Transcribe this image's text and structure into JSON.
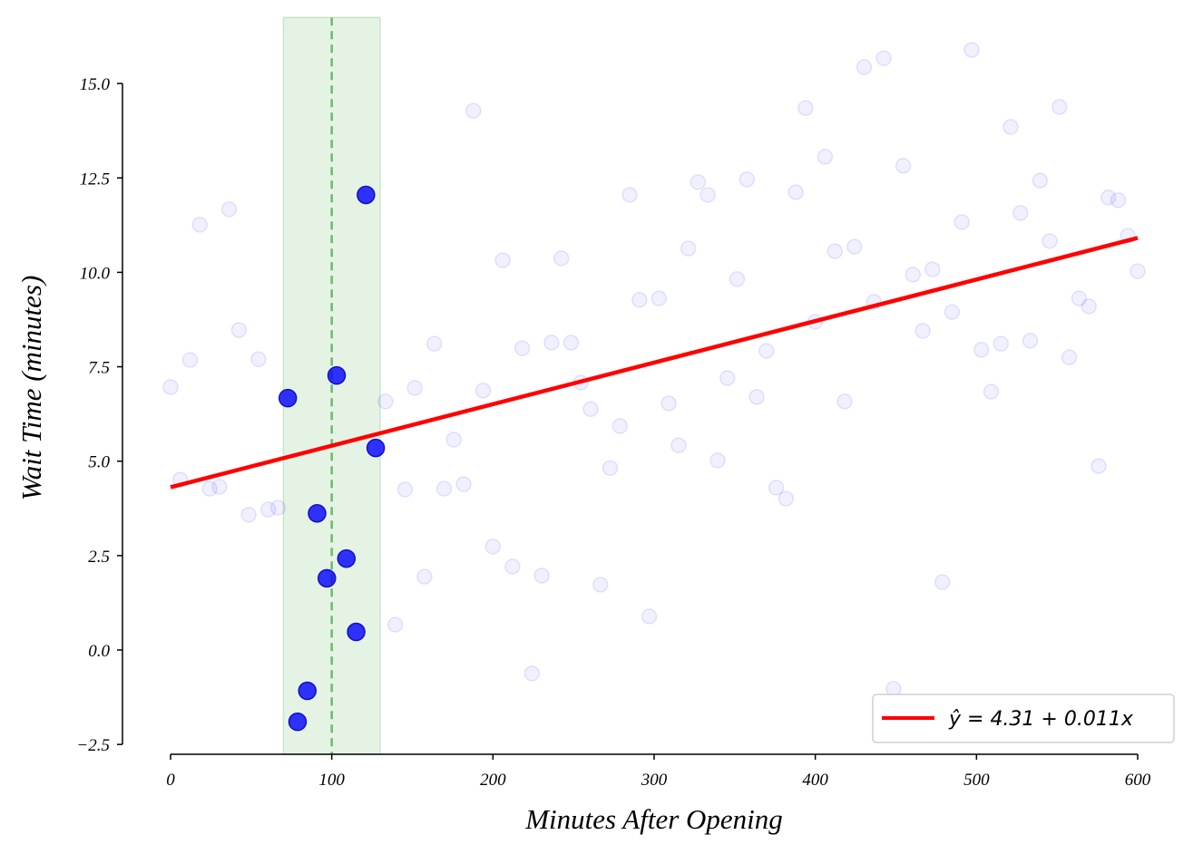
{
  "chart_data": {
    "type": "scatter",
    "title": "",
    "xlabel": "Minutes After Opening",
    "ylabel": "Wait Time (minutes)",
    "xlim": [
      -30,
      623
    ],
    "ylim": [
      -2.76,
      16.75
    ],
    "x_ticks": [
      0,
      100,
      200,
      300,
      400,
      500,
      600
    ],
    "x_tick_labels": [
      "0",
      "100",
      "200",
      "300",
      "400",
      "500",
      "600"
    ],
    "y_ticks": [
      -2.5,
      0,
      2.5,
      5,
      7.5,
      10,
      12.5,
      15
    ],
    "y_tick_labels": [
      "−2.5",
      "0.0",
      "2.5",
      "5.0",
      "7.5",
      "10.0",
      "12.5",
      "15.0"
    ],
    "grid": false,
    "x_range": [
      0,
      600
    ],
    "n_points": 100,
    "y": [
      6.96,
      4.51,
      7.68,
      11.26,
      4.27,
      4.32,
      11.67,
      8.47,
      3.58,
      7.7,
      3.72,
      3.77,
      6.67,
      -1.9,
      -1.08,
      3.62,
      1.9,
      7.27,
      2.42,
      0.48,
      12.05,
      5.35,
      6.58,
      0.67,
      4.25,
      6.94,
      1.94,
      8.11,
      4.27,
      5.57,
      4.39,
      14.28,
      6.87,
      2.74,
      10.32,
      2.21,
      7.99,
      -0.62,
      1.97,
      8.14,
      10.37,
      8.14,
      7.08,
      6.38,
      1.73,
      4.82,
      5.93,
      12.05,
      9.27,
      0.89,
      9.31,
      6.53,
      5.42,
      10.63,
      12.39,
      12.05,
      5.02,
      7.2,
      9.82,
      12.46,
      6.7,
      7.92,
      4.3,
      4.01,
      12.12,
      14.35,
      8.69,
      13.06,
      10.56,
      6.58,
      10.68,
      15.43,
      9.22,
      15.67,
      -1.03,
      12.82,
      9.94,
      8.45,
      10.08,
      1.8,
      8.95,
      11.33,
      15.89,
      7.95,
      6.84,
      8.11,
      13.85,
      11.57,
      8.19,
      12.43,
      10.83,
      14.38,
      7.75,
      9.31,
      9.1,
      4.87,
      11.98,
      11.91,
      10.97,
      10.03
    ],
    "highlight_window": {
      "start": 70,
      "end": 130,
      "center": 100
    },
    "fit_line": {
      "intercept": 4.31,
      "slope": 0.011,
      "label": "ŷ = 4.31 + 0.011x"
    },
    "legend": {
      "position": "bottom-right",
      "entries": [
        "ŷ = 4.31 + 0.011x"
      ]
    },
    "colors": {
      "points": "#0000ff",
      "fit_line": "#ff0000",
      "window": "#2ca02c",
      "center_line": "#6db96d"
    }
  }
}
